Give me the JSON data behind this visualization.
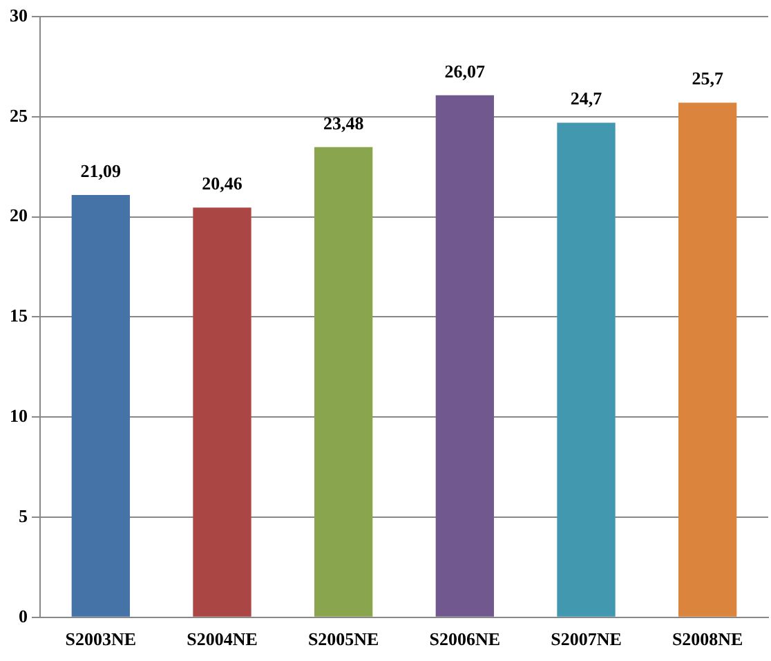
{
  "chart_data": {
    "type": "bar",
    "categories": [
      "S2003NE",
      "S2004NE",
      "S2005NE",
      "S2006NE",
      "S2007NE",
      "S2008NE"
    ],
    "values": [
      21.09,
      20.46,
      23.48,
      26.07,
      24.7,
      25.7
    ],
    "colors": [
      "#4572a7",
      "#aa4643",
      "#89a54e",
      "#71588f",
      "#4198af",
      "#db843d"
    ],
    "value_labels": [
      "21,09",
      "20,46",
      "23,48",
      "26,07",
      "24,7",
      "25,7"
    ],
    "ylim": [
      0,
      30
    ],
    "yticks": [
      0,
      5,
      10,
      15,
      20,
      25,
      30
    ],
    "grid": "y",
    "legend": false
  }
}
